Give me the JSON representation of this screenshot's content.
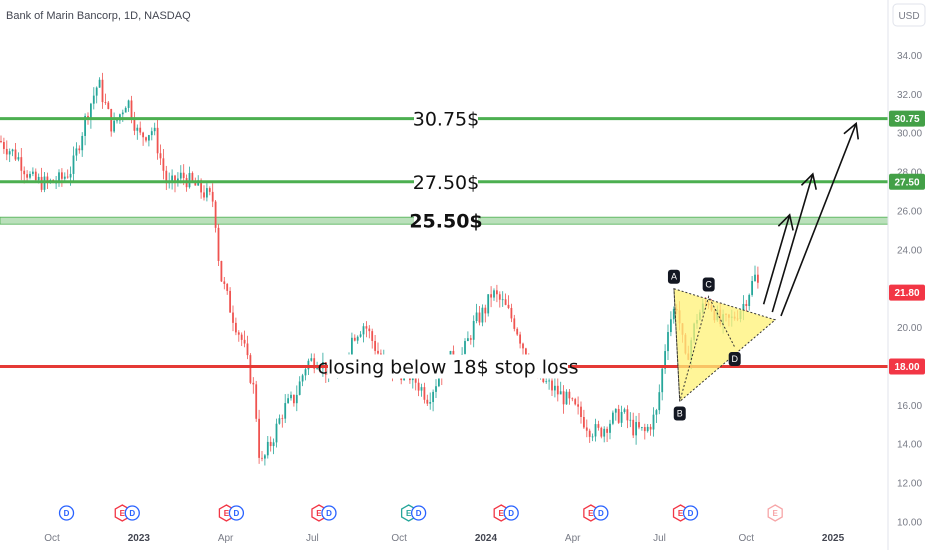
{
  "chart_data": {
    "type": "candlestick",
    "title": "Bank of Marin Bancorp, 1D, NASDAQ",
    "currency": "USD",
    "ylim": [
      10,
      35
    ],
    "y_ticks": [
      "10.00",
      "12.00",
      "14.00",
      "16.00",
      "18.00",
      "20.00",
      "22.00",
      "24.00",
      "26.00",
      "28.00",
      "30.00",
      "32.00",
      "34.00"
    ],
    "x_ticks": [
      {
        "label": "Oct",
        "t": 9,
        "major": false
      },
      {
        "label": "2023",
        "t": 12,
        "major": true
      },
      {
        "label": "Apr",
        "t": 15,
        "major": false
      },
      {
        "label": "Jul",
        "t": 18,
        "major": false
      },
      {
        "label": "Oct",
        "t": 21,
        "major": false
      },
      {
        "label": "2024",
        "t": 24,
        "major": true
      },
      {
        "label": "Apr",
        "t": 27,
        "major": false
      },
      {
        "label": "Jul",
        "t": 30,
        "major": false
      },
      {
        "label": "Oct",
        "t": 33,
        "major": false
      },
      {
        "label": "2025",
        "t": 36,
        "major": true
      }
    ],
    "xlim": [
      7.2,
      37.9
    ],
    "price_path": [
      [
        7.2,
        29.6
      ],
      [
        7.8,
        28.8
      ],
      [
        8.3,
        27.6
      ],
      [
        8.8,
        27.4
      ],
      [
        9.3,
        27.6
      ],
      [
        9.7,
        28.2
      ],
      [
        10.2,
        31.0
      ],
      [
        10.6,
        32.6
      ],
      [
        11.1,
        30.2
      ],
      [
        11.6,
        31.8
      ],
      [
        12.0,
        29.8
      ],
      [
        12.5,
        30.2
      ],
      [
        13.0,
        27.2
      ],
      [
        13.5,
        27.8
      ],
      [
        14.2,
        27.0
      ],
      [
        14.6,
        26.5
      ],
      [
        14.8,
        22.8
      ],
      [
        15.2,
        20.8
      ],
      [
        15.6,
        19.2
      ],
      [
        16.0,
        16.6
      ],
      [
        16.2,
        12.8
      ],
      [
        16.6,
        14.2
      ],
      [
        17.0,
        15.8
      ],
      [
        17.4,
        16.4
      ],
      [
        17.8,
        18.2
      ],
      [
        18.2,
        18.4
      ],
      [
        18.6,
        17.6
      ],
      [
        19.0,
        17.8
      ],
      [
        19.4,
        19.6
      ],
      [
        19.8,
        20.2
      ],
      [
        20.3,
        18.6
      ],
      [
        20.8,
        17.6
      ],
      [
        21.2,
        17.8
      ],
      [
        21.6,
        17.2
      ],
      [
        22.0,
        16.4
      ],
      [
        22.4,
        17.6
      ],
      [
        22.8,
        18.4
      ],
      [
        23.2,
        18.6
      ],
      [
        23.6,
        20.2
      ],
      [
        24.0,
        21.0
      ],
      [
        24.2,
        21.8
      ],
      [
        24.6,
        21.2
      ],
      [
        25.0,
        20.2
      ],
      [
        25.5,
        18.2
      ],
      [
        25.8,
        17.4
      ],
      [
        26.2,
        17.0
      ],
      [
        26.7,
        16.4
      ],
      [
        27.2,
        15.6
      ],
      [
        27.6,
        14.8
      ],
      [
        27.9,
        14.6
      ],
      [
        28.3,
        15.2
      ],
      [
        28.7,
        15.6
      ],
      [
        29.1,
        14.8
      ],
      [
        29.5,
        14.6
      ],
      [
        29.9,
        15.6
      ],
      [
        30.3,
        20.2
      ],
      [
        30.6,
        21.2
      ],
      [
        30.9,
        18.2
      ],
      [
        31.3,
        20.6
      ],
      [
        31.7,
        21.4
      ],
      [
        32.1,
        20.2
      ],
      [
        32.5,
        20.4
      ],
      [
        32.9,
        21.2
      ],
      [
        33.3,
        22.6
      ],
      [
        33.5,
        21.8
      ]
    ],
    "levels": [
      {
        "name": "target-3",
        "value": 30.75,
        "label": "30.75$",
        "tag": "30.75",
        "color": "#4caf50",
        "style": "line"
      },
      {
        "name": "target-2",
        "value": 27.5,
        "label": "27.50$",
        "tag": "27.50",
        "color": "#4caf50",
        "style": "line"
      },
      {
        "name": "target-1",
        "value": 25.5,
        "label": "25.50$",
        "tag": "",
        "color": "#81c784",
        "style": "band"
      },
      {
        "name": "stop-loss",
        "value": 18.0,
        "label": "closing below 18$ stop loss",
        "tag": "18.00",
        "color": "#e53935",
        "style": "line"
      }
    ],
    "last_price": {
      "value": 21.8,
      "tag": "21.80",
      "color": "#f23645"
    },
    "pattern": {
      "type": "triangle",
      "points": [
        {
          "label": "A",
          "t": 30.5,
          "y": 22.0
        },
        {
          "label": "B",
          "t": 30.7,
          "y": 16.2
        },
        {
          "label": "C",
          "t": 31.7,
          "y": 21.6
        },
        {
          "label": "D",
          "t": 32.6,
          "y": 19.0
        }
      ],
      "apex": {
        "t": 34.0,
        "y": 20.4
      },
      "fill": "#fff176"
    },
    "projections": [
      {
        "from": [
          33.6,
          21.2
        ],
        "to": [
          34.5,
          25.8
        ]
      },
      {
        "from": [
          33.9,
          20.8
        ],
        "to": [
          35.3,
          27.9
        ]
      },
      {
        "from": [
          34.2,
          20.6
        ],
        "to": [
          36.8,
          30.5
        ]
      }
    ],
    "events": [
      {
        "t": 9.5,
        "marks": [
          "D"
        ]
      },
      {
        "t": 11.6,
        "marks": [
          "E",
          "D"
        ]
      },
      {
        "t": 15.2,
        "marks": [
          "E",
          "D"
        ]
      },
      {
        "t": 18.4,
        "marks": [
          "E",
          "D"
        ]
      },
      {
        "t": 21.5,
        "marks": [
          "E",
          "D"
        ]
      },
      {
        "t": 24.7,
        "marks": [
          "E",
          "D"
        ]
      },
      {
        "t": 27.8,
        "marks": [
          "E",
          "D"
        ]
      },
      {
        "t": 30.9,
        "marks": [
          "E",
          "D"
        ]
      },
      {
        "t": 34.0,
        "marks": [
          "E"
        ],
        "faded": true
      }
    ]
  }
}
